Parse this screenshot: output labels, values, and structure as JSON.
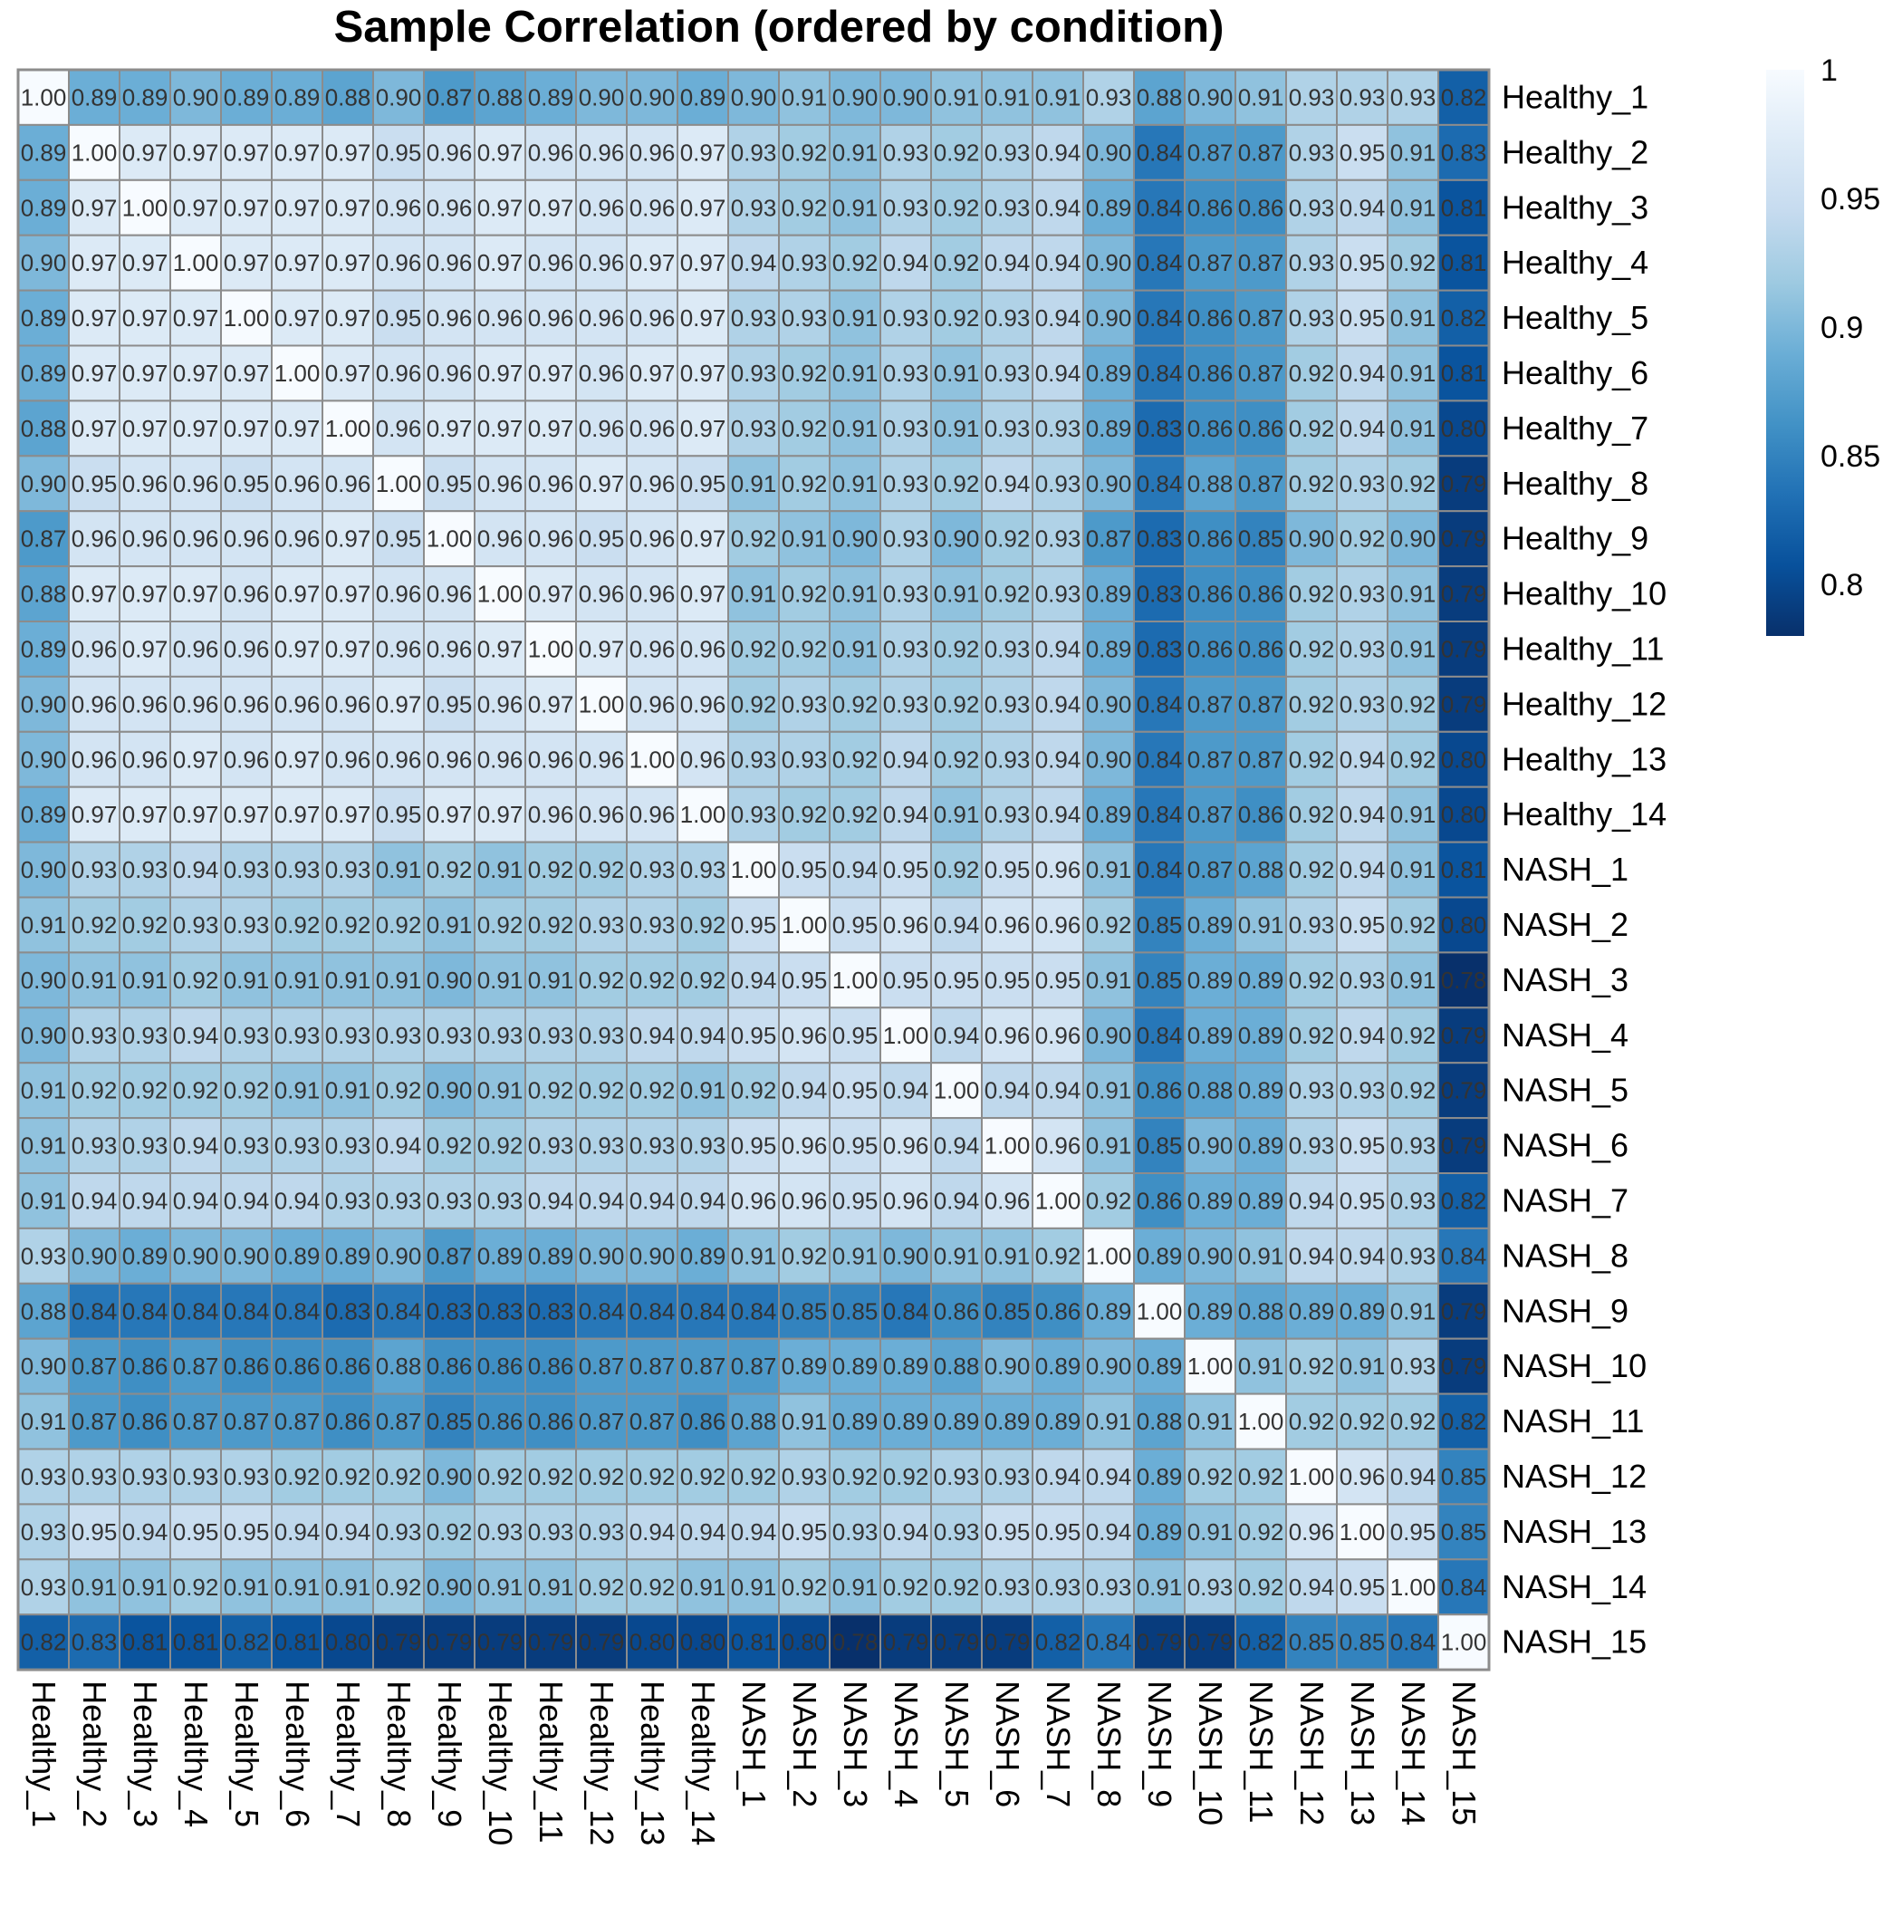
{
  "chart_data": {
    "type": "heatmap",
    "title": "Sample Correlation (ordered by condition)",
    "xlabel": "",
    "ylabel": "",
    "labels": [
      "Healthy_1",
      "Healthy_2",
      "Healthy_3",
      "Healthy_4",
      "Healthy_5",
      "Healthy_6",
      "Healthy_7",
      "Healthy_8",
      "Healthy_9",
      "Healthy_10",
      "Healthy_11",
      "Healthy_12",
      "Healthy_13",
      "Healthy_14",
      "NASH_1",
      "NASH_2",
      "NASH_3",
      "NASH_4",
      "NASH_5",
      "NASH_6",
      "NASH_7",
      "NASH_8",
      "NASH_9",
      "NASH_10",
      "NASH_11",
      "NASH_12",
      "NASH_13",
      "NASH_14",
      "NASH_15"
    ],
    "matrix": [
      [
        1.0,
        0.89,
        0.89,
        0.9,
        0.89,
        0.89,
        0.88,
        0.9,
        0.87,
        0.88,
        0.89,
        0.9,
        0.9,
        0.89,
        0.9,
        0.91,
        0.9,
        0.9,
        0.91,
        0.91,
        0.91,
        0.93,
        0.88,
        0.9,
        0.91,
        0.93,
        0.93,
        0.93,
        0.82
      ],
      [
        0.89,
        1.0,
        0.97,
        0.97,
        0.97,
        0.97,
        0.97,
        0.95,
        0.96,
        0.97,
        0.96,
        0.96,
        0.96,
        0.97,
        0.93,
        0.92,
        0.91,
        0.93,
        0.92,
        0.93,
        0.94,
        0.9,
        0.84,
        0.87,
        0.87,
        0.93,
        0.95,
        0.91,
        0.83
      ],
      [
        0.89,
        0.97,
        1.0,
        0.97,
        0.97,
        0.97,
        0.97,
        0.96,
        0.96,
        0.97,
        0.97,
        0.96,
        0.96,
        0.97,
        0.93,
        0.92,
        0.91,
        0.93,
        0.92,
        0.93,
        0.94,
        0.89,
        0.84,
        0.86,
        0.86,
        0.93,
        0.94,
        0.91,
        0.81
      ],
      [
        0.9,
        0.97,
        0.97,
        1.0,
        0.97,
        0.97,
        0.97,
        0.96,
        0.96,
        0.97,
        0.96,
        0.96,
        0.97,
        0.97,
        0.94,
        0.93,
        0.92,
        0.94,
        0.92,
        0.94,
        0.94,
        0.9,
        0.84,
        0.87,
        0.87,
        0.93,
        0.95,
        0.92,
        0.81
      ],
      [
        0.89,
        0.97,
        0.97,
        0.97,
        1.0,
        0.97,
        0.97,
        0.95,
        0.96,
        0.96,
        0.96,
        0.96,
        0.96,
        0.97,
        0.93,
        0.93,
        0.91,
        0.93,
        0.92,
        0.93,
        0.94,
        0.9,
        0.84,
        0.86,
        0.87,
        0.93,
        0.95,
        0.91,
        0.82
      ],
      [
        0.89,
        0.97,
        0.97,
        0.97,
        0.97,
        1.0,
        0.97,
        0.96,
        0.96,
        0.97,
        0.97,
        0.96,
        0.97,
        0.97,
        0.93,
        0.92,
        0.91,
        0.93,
        0.91,
        0.93,
        0.94,
        0.89,
        0.84,
        0.86,
        0.87,
        0.92,
        0.94,
        0.91,
        0.81
      ],
      [
        0.88,
        0.97,
        0.97,
        0.97,
        0.97,
        0.97,
        1.0,
        0.96,
        0.97,
        0.97,
        0.97,
        0.96,
        0.96,
        0.97,
        0.93,
        0.92,
        0.91,
        0.93,
        0.91,
        0.93,
        0.93,
        0.89,
        0.83,
        0.86,
        0.86,
        0.92,
        0.94,
        0.91,
        0.8
      ],
      [
        0.9,
        0.95,
        0.96,
        0.96,
        0.95,
        0.96,
        0.96,
        1.0,
        0.95,
        0.96,
        0.96,
        0.97,
        0.96,
        0.95,
        0.91,
        0.92,
        0.91,
        0.93,
        0.92,
        0.94,
        0.93,
        0.9,
        0.84,
        0.88,
        0.87,
        0.92,
        0.93,
        0.92,
        0.79
      ],
      [
        0.87,
        0.96,
        0.96,
        0.96,
        0.96,
        0.96,
        0.97,
        0.95,
        1.0,
        0.96,
        0.96,
        0.95,
        0.96,
        0.97,
        0.92,
        0.91,
        0.9,
        0.93,
        0.9,
        0.92,
        0.93,
        0.87,
        0.83,
        0.86,
        0.85,
        0.9,
        0.92,
        0.9,
        0.79
      ],
      [
        0.88,
        0.97,
        0.97,
        0.97,
        0.96,
        0.97,
        0.97,
        0.96,
        0.96,
        1.0,
        0.97,
        0.96,
        0.96,
        0.97,
        0.91,
        0.92,
        0.91,
        0.93,
        0.91,
        0.92,
        0.93,
        0.89,
        0.83,
        0.86,
        0.86,
        0.92,
        0.93,
        0.91,
        0.79
      ],
      [
        0.89,
        0.96,
        0.97,
        0.96,
        0.96,
        0.97,
        0.97,
        0.96,
        0.96,
        0.97,
        1.0,
        0.97,
        0.96,
        0.96,
        0.92,
        0.92,
        0.91,
        0.93,
        0.92,
        0.93,
        0.94,
        0.89,
        0.83,
        0.86,
        0.86,
        0.92,
        0.93,
        0.91,
        0.79
      ],
      [
        0.9,
        0.96,
        0.96,
        0.96,
        0.96,
        0.96,
        0.96,
        0.97,
        0.95,
        0.96,
        0.97,
        1.0,
        0.96,
        0.96,
        0.92,
        0.93,
        0.92,
        0.93,
        0.92,
        0.93,
        0.94,
        0.9,
        0.84,
        0.87,
        0.87,
        0.92,
        0.93,
        0.92,
        0.79
      ],
      [
        0.9,
        0.96,
        0.96,
        0.97,
        0.96,
        0.97,
        0.96,
        0.96,
        0.96,
        0.96,
        0.96,
        0.96,
        1.0,
        0.96,
        0.93,
        0.93,
        0.92,
        0.94,
        0.92,
        0.93,
        0.94,
        0.9,
        0.84,
        0.87,
        0.87,
        0.92,
        0.94,
        0.92,
        0.8
      ],
      [
        0.89,
        0.97,
        0.97,
        0.97,
        0.97,
        0.97,
        0.97,
        0.95,
        0.97,
        0.97,
        0.96,
        0.96,
        0.96,
        1.0,
        0.93,
        0.92,
        0.92,
        0.94,
        0.91,
        0.93,
        0.94,
        0.89,
        0.84,
        0.87,
        0.86,
        0.92,
        0.94,
        0.91,
        0.8
      ],
      [
        0.9,
        0.93,
        0.93,
        0.94,
        0.93,
        0.93,
        0.93,
        0.91,
        0.92,
        0.91,
        0.92,
        0.92,
        0.93,
        0.93,
        1.0,
        0.95,
        0.94,
        0.95,
        0.92,
        0.95,
        0.96,
        0.91,
        0.84,
        0.87,
        0.88,
        0.92,
        0.94,
        0.91,
        0.81
      ],
      [
        0.91,
        0.92,
        0.92,
        0.93,
        0.93,
        0.92,
        0.92,
        0.92,
        0.91,
        0.92,
        0.92,
        0.93,
        0.93,
        0.92,
        0.95,
        1.0,
        0.95,
        0.96,
        0.94,
        0.96,
        0.96,
        0.92,
        0.85,
        0.89,
        0.91,
        0.93,
        0.95,
        0.92,
        0.8
      ],
      [
        0.9,
        0.91,
        0.91,
        0.92,
        0.91,
        0.91,
        0.91,
        0.91,
        0.9,
        0.91,
        0.91,
        0.92,
        0.92,
        0.92,
        0.94,
        0.95,
        1.0,
        0.95,
        0.95,
        0.95,
        0.95,
        0.91,
        0.85,
        0.89,
        0.89,
        0.92,
        0.93,
        0.91,
        0.78
      ],
      [
        0.9,
        0.93,
        0.93,
        0.94,
        0.93,
        0.93,
        0.93,
        0.93,
        0.93,
        0.93,
        0.93,
        0.93,
        0.94,
        0.94,
        0.95,
        0.96,
        0.95,
        1.0,
        0.94,
        0.96,
        0.96,
        0.9,
        0.84,
        0.89,
        0.89,
        0.92,
        0.94,
        0.92,
        0.79
      ],
      [
        0.91,
        0.92,
        0.92,
        0.92,
        0.92,
        0.91,
        0.91,
        0.92,
        0.9,
        0.91,
        0.92,
        0.92,
        0.92,
        0.91,
        0.92,
        0.94,
        0.95,
        0.94,
        1.0,
        0.94,
        0.94,
        0.91,
        0.86,
        0.88,
        0.89,
        0.93,
        0.93,
        0.92,
        0.79
      ],
      [
        0.91,
        0.93,
        0.93,
        0.94,
        0.93,
        0.93,
        0.93,
        0.94,
        0.92,
        0.92,
        0.93,
        0.93,
        0.93,
        0.93,
        0.95,
        0.96,
        0.95,
        0.96,
        0.94,
        1.0,
        0.96,
        0.91,
        0.85,
        0.9,
        0.89,
        0.93,
        0.95,
        0.93,
        0.79
      ],
      [
        0.91,
        0.94,
        0.94,
        0.94,
        0.94,
        0.94,
        0.93,
        0.93,
        0.93,
        0.93,
        0.94,
        0.94,
        0.94,
        0.94,
        0.96,
        0.96,
        0.95,
        0.96,
        0.94,
        0.96,
        1.0,
        0.92,
        0.86,
        0.89,
        0.89,
        0.94,
        0.95,
        0.93,
        0.82
      ],
      [
        0.93,
        0.9,
        0.89,
        0.9,
        0.9,
        0.89,
        0.89,
        0.9,
        0.87,
        0.89,
        0.89,
        0.9,
        0.9,
        0.89,
        0.91,
        0.92,
        0.91,
        0.9,
        0.91,
        0.91,
        0.92,
        1.0,
        0.89,
        0.9,
        0.91,
        0.94,
        0.94,
        0.93,
        0.84
      ],
      [
        0.88,
        0.84,
        0.84,
        0.84,
        0.84,
        0.84,
        0.83,
        0.84,
        0.83,
        0.83,
        0.83,
        0.84,
        0.84,
        0.84,
        0.84,
        0.85,
        0.85,
        0.84,
        0.86,
        0.85,
        0.86,
        0.89,
        1.0,
        0.89,
        0.88,
        0.89,
        0.89,
        0.91,
        0.79
      ],
      [
        0.9,
        0.87,
        0.86,
        0.87,
        0.86,
        0.86,
        0.86,
        0.88,
        0.86,
        0.86,
        0.86,
        0.87,
        0.87,
        0.87,
        0.87,
        0.89,
        0.89,
        0.89,
        0.88,
        0.9,
        0.89,
        0.9,
        0.89,
        1.0,
        0.91,
        0.92,
        0.91,
        0.93,
        0.79
      ],
      [
        0.91,
        0.87,
        0.86,
        0.87,
        0.87,
        0.87,
        0.86,
        0.87,
        0.85,
        0.86,
        0.86,
        0.87,
        0.87,
        0.86,
        0.88,
        0.91,
        0.89,
        0.89,
        0.89,
        0.89,
        0.89,
        0.91,
        0.88,
        0.91,
        1.0,
        0.92,
        0.92,
        0.92,
        0.82
      ],
      [
        0.93,
        0.93,
        0.93,
        0.93,
        0.93,
        0.92,
        0.92,
        0.92,
        0.9,
        0.92,
        0.92,
        0.92,
        0.92,
        0.92,
        0.92,
        0.93,
        0.92,
        0.92,
        0.93,
        0.93,
        0.94,
        0.94,
        0.89,
        0.92,
        0.92,
        1.0,
        0.96,
        0.94,
        0.85
      ],
      [
        0.93,
        0.95,
        0.94,
        0.95,
        0.95,
        0.94,
        0.94,
        0.93,
        0.92,
        0.93,
        0.93,
        0.93,
        0.94,
        0.94,
        0.94,
        0.95,
        0.93,
        0.94,
        0.93,
        0.95,
        0.95,
        0.94,
        0.89,
        0.91,
        0.92,
        0.96,
        1.0,
        0.95,
        0.85
      ],
      [
        0.93,
        0.91,
        0.91,
        0.92,
        0.91,
        0.91,
        0.91,
        0.92,
        0.9,
        0.91,
        0.91,
        0.92,
        0.92,
        0.91,
        0.91,
        0.92,
        0.91,
        0.92,
        0.92,
        0.93,
        0.93,
        0.93,
        0.91,
        0.93,
        0.92,
        0.94,
        0.95,
        1.0,
        0.84
      ],
      [
        0.82,
        0.83,
        0.81,
        0.81,
        0.82,
        0.81,
        0.8,
        0.79,
        0.79,
        0.79,
        0.79,
        0.79,
        0.8,
        0.8,
        0.81,
        0.8,
        0.78,
        0.79,
        0.79,
        0.79,
        0.82,
        0.84,
        0.79,
        0.79,
        0.82,
        0.85,
        0.85,
        0.84,
        1.0
      ]
    ],
    "legend": {
      "position": "right",
      "range": [
        0.78,
        1.0
      ],
      "ticks": [
        1,
        0.95,
        0.9,
        0.85,
        0.8
      ],
      "tick_labels": [
        "1",
        "0.95",
        "0.9",
        "0.85",
        "0.8"
      ],
      "colors": [
        "#08306b",
        "#08519c",
        "#2171b5",
        "#4292c6",
        "#6baed6",
        "#9ecae1",
        "#c6dbef",
        "#deebf7",
        "#f7fbff"
      ]
    },
    "cell_border_color": "#8c8c8c",
    "grid": true
  }
}
